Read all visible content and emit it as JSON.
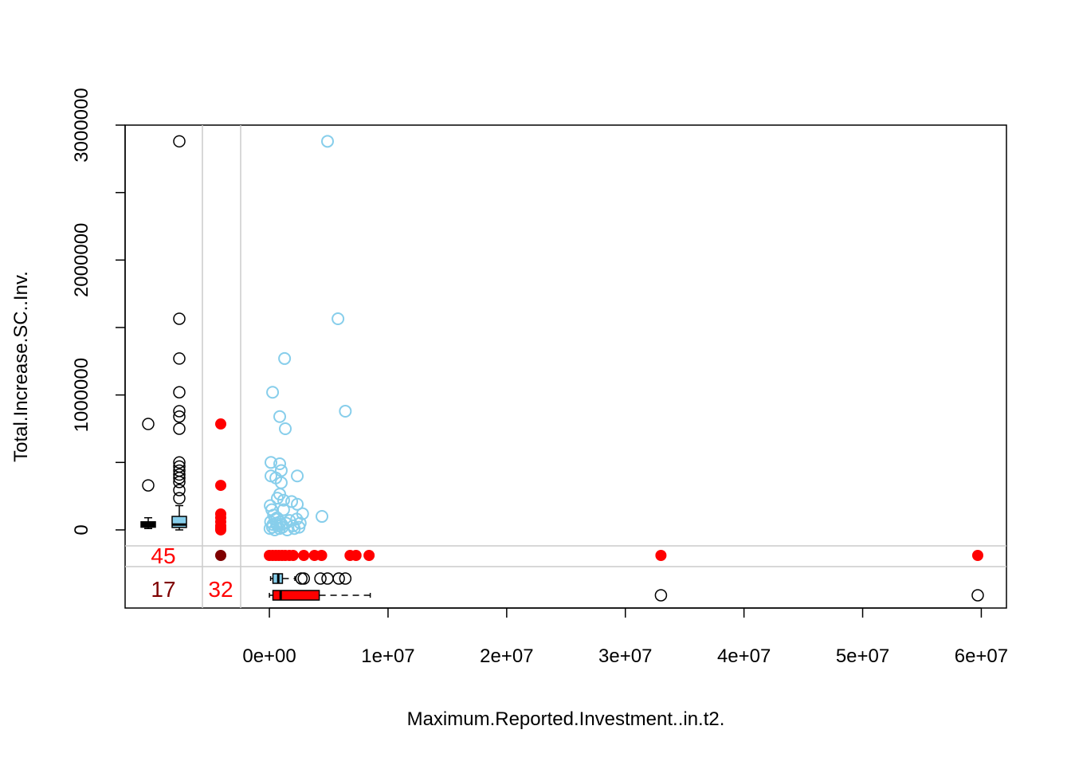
{
  "chart_data": {
    "type": "marginplot",
    "x_label": "Maximum.Reported.Investment..in.t2.",
    "y_label": "Total.Increase.SC..Inv.",
    "xlim": [
      -12160000,
      62120000
    ],
    "ylim": [
      -579000,
      3000000
    ],
    "xticks": [
      {
        "value": 0,
        "label": "0e+00"
      },
      {
        "value": 10000000,
        "label": "1e+07"
      },
      {
        "value": 20000000,
        "label": "2e+07"
      },
      {
        "value": 30000000,
        "label": "3e+07"
      },
      {
        "value": 40000000,
        "label": "4e+07"
      },
      {
        "value": 50000000,
        "label": "5e+07"
      },
      {
        "value": 60000000,
        "label": "6e+07"
      }
    ],
    "yticks": [
      0,
      1000000,
      2000000,
      3000000
    ],
    "yminor_ticks": [
      500000,
      1500000,
      2500000
    ],
    "observed": {
      "color": "#87ceeb",
      "x": [
        4900000,
        5780000,
        1280000,
        270000,
        6400000,
        870000,
        1340000,
        130000,
        870000,
        1000000,
        130000,
        2350000,
        540000,
        1000000,
        870000,
        670000,
        1200000,
        1880000,
        2350000,
        70000,
        200000,
        1200000,
        4430000,
        2800000,
        100000,
        300000,
        500000,
        700000,
        900000,
        1100000,
        1400000,
        1700000,
        2000000,
        2300000,
        2600000,
        50000,
        250000,
        450000,
        650000,
        850000,
        1050000,
        1500000,
        2100000,
        2500000,
        350000,
        600000
      ],
      "y": [
        2880000,
        1565000,
        1270000,
        1020000,
        880000,
        840000,
        750000,
        500000,
        490000,
        440000,
        400000,
        400000,
        385000,
        350000,
        265000,
        235000,
        220000,
        210000,
        190000,
        180000,
        150000,
        150000,
        100000,
        120000,
        60000,
        40000,
        80000,
        30000,
        60000,
        20000,
        50000,
        70000,
        30000,
        80000,
        50000,
        10000,
        20000,
        0,
        90000,
        10000,
        40000,
        0,
        10000,
        20000,
        110000,
        50000
      ]
    },
    "missing_x": {
      "color": "#ff0000",
      "y": [
        785000,
        330000,
        118000,
        90000,
        60000,
        30000,
        12000,
        0
      ]
    },
    "missing_y": {
      "color": "#ff0000",
      "x": [
        0,
        270000,
        540000,
        800000,
        1070000,
        1340000,
        1680000,
        2000000,
        2900000,
        3800000,
        4400000,
        6800000,
        7300000,
        8400000,
        33000000,
        59700000
      ]
    },
    "both_missing_color": "#7f0000",
    "counts": {
      "missing_y": 45,
      "missing_both": 17,
      "missing_x": 32,
      "color": "#ff0000",
      "both_color": "#7f0000"
    },
    "y_boxplots": [
      {
        "color": "#000000",
        "whisker_low": 10000,
        "q1": 20000,
        "median": 40000,
        "q3": 60000,
        "whisker_high": 90000,
        "outliers": [
          785000,
          330000
        ]
      },
      {
        "color": "#87ceeb",
        "whisker_low": 0,
        "q1": 18000,
        "median": 40000,
        "q3": 100000,
        "whisker_high": 180000,
        "outliers": [
          2880000,
          1565000,
          1270000,
          1020000,
          880000,
          840000,
          750000,
          500000,
          470000,
          440000,
          410000,
          385000,
          355000,
          295000,
          235000
        ]
      }
    ],
    "x_boxplots": [
      {
        "color": "#87ceeb",
        "whisker_low": 100000,
        "q1": 300000,
        "median": 750000,
        "q3": 1100000,
        "whisker_high": 2150000,
        "outliers": [
          2700000,
          2900000,
          4300000,
          4900000,
          5850000,
          6400000
        ]
      },
      {
        "color": "#ff0000",
        "whisker_low": 0,
        "q1": 300000,
        "median": 950000,
        "q3": 4200000,
        "whisker_high": 8500000,
        "outliers": [
          33000000,
          59700000
        ]
      }
    ]
  }
}
